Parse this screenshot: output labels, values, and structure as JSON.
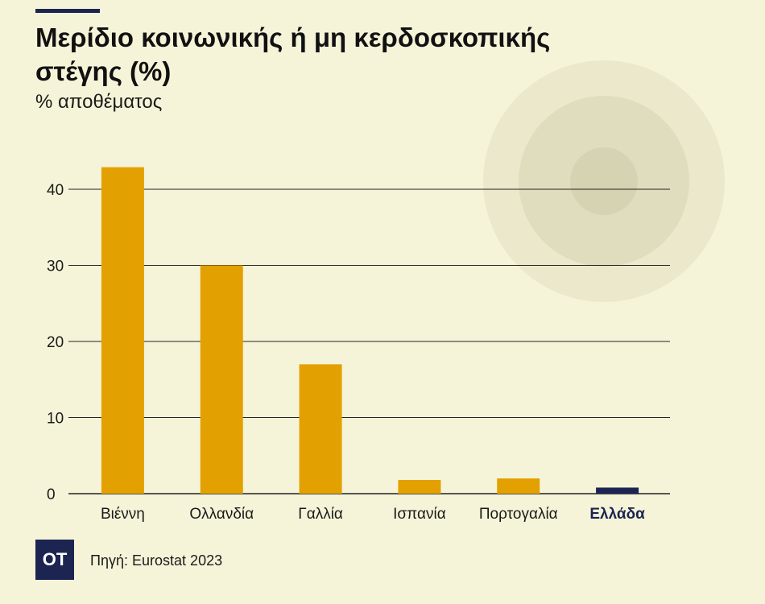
{
  "chart_data": {
    "type": "bar",
    "title": "Μερίδιο κοινωνικής ή μη κερδοσκοπικής στέγης (%)",
    "subtitle": "% αποθέματος",
    "categories": [
      "Βιέννη",
      "Ολλανδία",
      "Γαλλία",
      "Ισπανία",
      "Πορτογαλία",
      "Ελλάδα"
    ],
    "values": [
      42.9,
      30.0,
      17.0,
      1.8,
      2.0,
      0.8
    ],
    "highlight_category": "Ελλάδα",
    "ylim": [
      0,
      45
    ],
    "yticks": [
      "0",
      "10",
      "20",
      "30",
      "40"
    ],
    "grid": true,
    "colors": {
      "bar": "#e3a001",
      "highlight_bar": "#1c2452",
      "background": "#f6f4d8",
      "grid": "#222222",
      "circle_outer": "#ebe8cc",
      "circle_middle": "#e0ddbf",
      "circle_inner": "#d6d3b3"
    }
  },
  "brand": {
    "logo_text": "OT",
    "source": "Πηγή: Eurostat 2023"
  }
}
